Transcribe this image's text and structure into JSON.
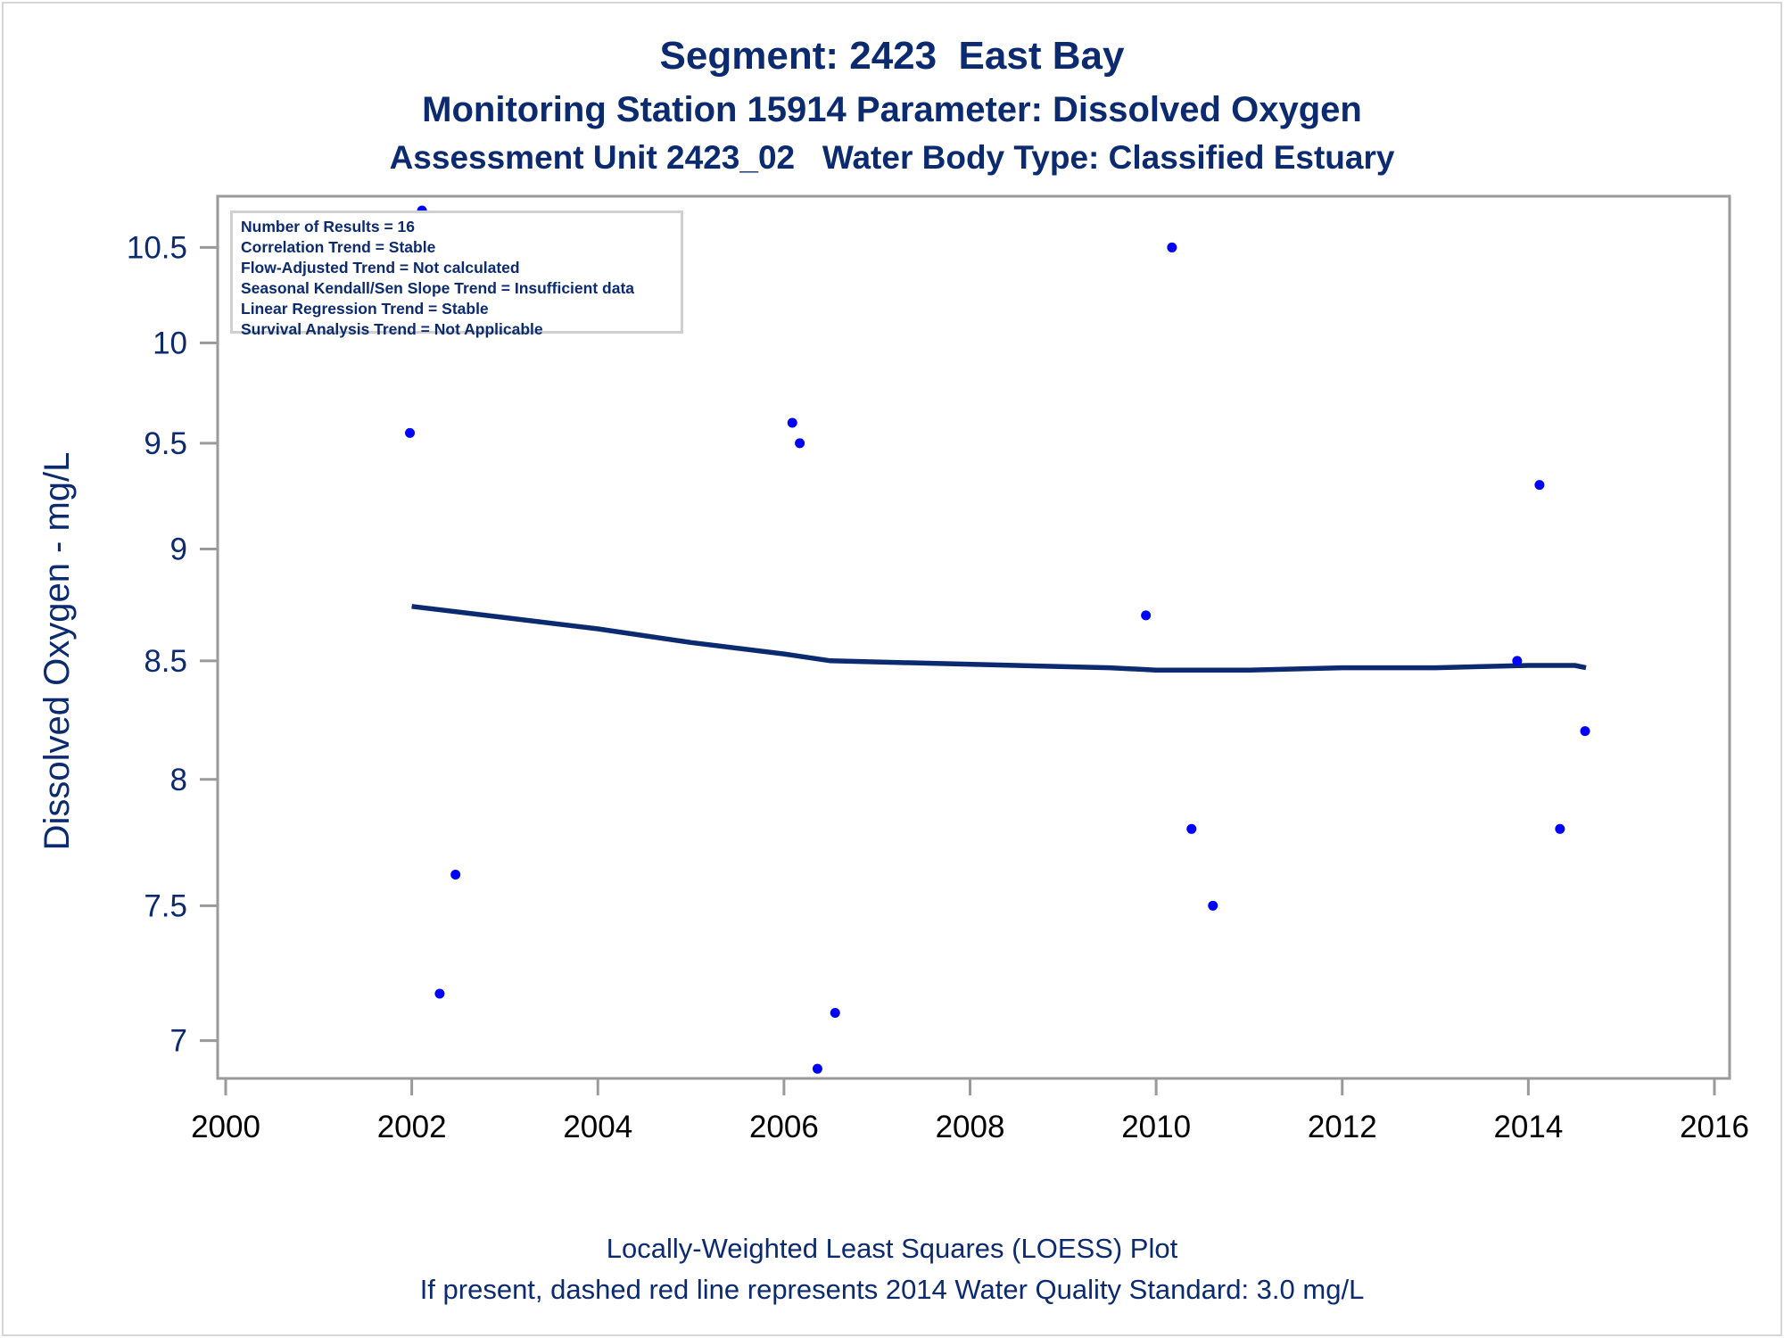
{
  "titles": {
    "line1": "Segment: 2423  East Bay",
    "line2": "Monitoring Station 15914 Parameter: Dissolved Oxygen",
    "line3": "Assessment Unit 2423_02   Water Body Type: Classified Estuary"
  },
  "stats_box": [
    "Number of Results = 16",
    "Correlation Trend = Stable",
    "Flow-Adjusted Trend = Not calculated",
    "Seasonal Kendall/Sen Slope Trend = Insufficient data",
    "Linear Regression Trend = Stable",
    "Survival Analysis Trend = Not Applicable"
  ],
  "footnotes": {
    "line1": "Locally-Weighted Least Squares (LOESS) Plot",
    "line2": "If present, dashed red line represents 2014 Water Quality Standard: 3.0 mg/L"
  },
  "colors": {
    "title": "#0b2a6f",
    "points": "#0000ff",
    "loess": "#0b2a6f",
    "axis": "#9a9a9a"
  },
  "chart_data": {
    "type": "scatter",
    "title": "Segment: 2423  East Bay",
    "xlabel": "",
    "ylabel": "Dissolved Oxygen - mg/L",
    "xlim": [
      2000,
      2016
    ],
    "ylim": [
      6.88,
      10.72
    ],
    "yscale": "log",
    "grid": false,
    "x_ticks": [
      "2000",
      "2002",
      "2004",
      "2006",
      "2008",
      "2010",
      "2012",
      "2014",
      "2016"
    ],
    "y_ticks": [
      "7",
      "7.5",
      "8",
      "8.5",
      "9",
      "9.5",
      "10",
      "10.5"
    ],
    "series": [
      {
        "name": "Dissolved Oxygen results",
        "kind": "scatter",
        "points": [
          {
            "x": 2001.98,
            "y": 9.55
          },
          {
            "x": 2002.11,
            "y": 10.7
          },
          {
            "x": 2002.3,
            "y": 7.17
          },
          {
            "x": 2002.47,
            "y": 7.62
          },
          {
            "x": 2006.09,
            "y": 9.6
          },
          {
            "x": 2006.17,
            "y": 9.5
          },
          {
            "x": 2006.36,
            "y": 6.9
          },
          {
            "x": 2006.55,
            "y": 7.1
          },
          {
            "x": 2009.89,
            "y": 8.7
          },
          {
            "x": 2010.17,
            "y": 10.5
          },
          {
            "x": 2010.38,
            "y": 7.8
          },
          {
            "x": 2010.61,
            "y": 7.5
          },
          {
            "x": 2013.88,
            "y": 8.5
          },
          {
            "x": 2014.12,
            "y": 9.3
          },
          {
            "x": 2014.34,
            "y": 7.8
          },
          {
            "x": 2014.61,
            "y": 8.2
          }
        ]
      },
      {
        "name": "LOESS fit",
        "kind": "line",
        "points": [
          {
            "x": 2002.0,
            "y": 8.74
          },
          {
            "x": 2003.0,
            "y": 8.69
          },
          {
            "x": 2004.0,
            "y": 8.64
          },
          {
            "x": 2005.0,
            "y": 8.58
          },
          {
            "x": 2006.0,
            "y": 8.53
          },
          {
            "x": 2006.5,
            "y": 8.5
          },
          {
            "x": 2007.5,
            "y": 8.49
          },
          {
            "x": 2008.5,
            "y": 8.48
          },
          {
            "x": 2009.5,
            "y": 8.47
          },
          {
            "x": 2010.0,
            "y": 8.46
          },
          {
            "x": 2011.0,
            "y": 8.46
          },
          {
            "x": 2012.0,
            "y": 8.47
          },
          {
            "x": 2013.0,
            "y": 8.47
          },
          {
            "x": 2014.0,
            "y": 8.48
          },
          {
            "x": 2014.5,
            "y": 8.48
          },
          {
            "x": 2014.62,
            "y": 8.47
          }
        ]
      }
    ]
  }
}
